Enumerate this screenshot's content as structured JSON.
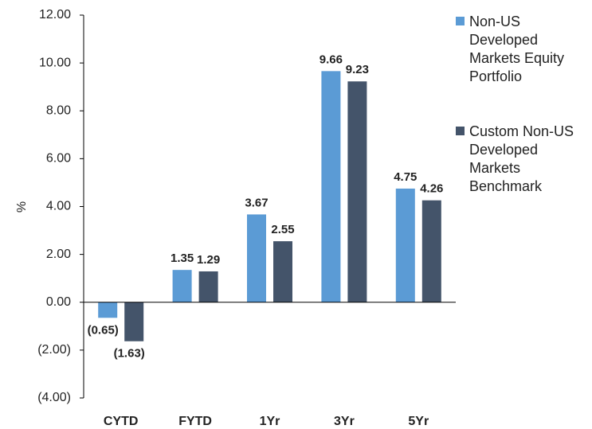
{
  "chart_data": {
    "type": "bar",
    "ylabel": "%",
    "categories": [
      "CYTD",
      "FYTD",
      "1Yr",
      "3Yr",
      "5Yr"
    ],
    "series": [
      {
        "name": "Non-US Developed Markets Equity Portfolio",
        "color": "#5b9bd5",
        "values": [
          -0.65,
          1.35,
          3.67,
          9.66,
          4.75
        ],
        "value_labels": [
          "(0.65)",
          "1.35",
          "3.67",
          "9.66",
          "4.75"
        ]
      },
      {
        "name": "Custom Non-US Developed Markets Benchmark",
        "color": "#44546a",
        "values": [
          -1.63,
          1.29,
          2.55,
          9.23,
          4.26
        ],
        "value_labels": [
          "(1.63)",
          "1.29",
          "2.55",
          "9.23",
          "4.26"
        ]
      }
    ],
    "ylim": [
      -4,
      12
    ],
    "yticks": [
      {
        "value": -4,
        "label": "(4.00)"
      },
      {
        "value": -2,
        "label": "(2.00)"
      },
      {
        "value": 0,
        "label": "0.00"
      },
      {
        "value": 2,
        "label": "2.00"
      },
      {
        "value": 4,
        "label": "4.00"
      },
      {
        "value": 6,
        "label": "6.00"
      },
      {
        "value": 8,
        "label": "8.00"
      },
      {
        "value": 10,
        "label": "10.00"
      },
      {
        "value": 12,
        "label": "12.00"
      }
    ],
    "legend": "right"
  }
}
